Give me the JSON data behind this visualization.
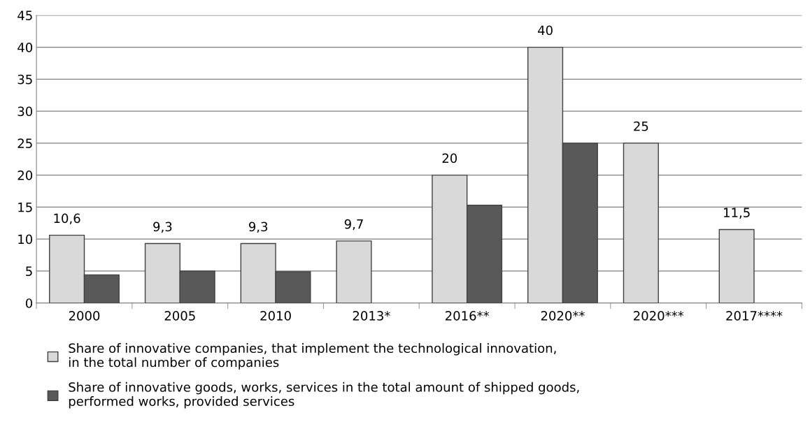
{
  "chart_data": {
    "type": "bar",
    "categories": [
      "2000",
      "2005",
      "2010",
      "2013*",
      "2016**",
      "2020**",
      "2020***",
      "2017****"
    ],
    "series": [
      {
        "name": "Share of innovative companies, that implement the technological innovation,\nin the total number of companies",
        "color": "#d9d9d9",
        "values": [
          10.6,
          9.3,
          9.3,
          9.7,
          20,
          40,
          25,
          11.5
        ],
        "value_labels": [
          "10,6",
          "9,3",
          "9,3",
          "9,7",
          "20",
          "40",
          "25",
          "11,5"
        ]
      },
      {
        "name": "Share of innovative goods, works, services in the total amount of shipped goods,\nperformed works, provided services",
        "color": "#595959",
        "values": [
          4.4,
          5.0,
          4.9,
          null,
          15.3,
          25,
          null,
          null
        ]
      }
    ],
    "ylim": [
      0,
      45
    ],
    "yticks": [
      0,
      5,
      10,
      15,
      20,
      25,
      30,
      35,
      40,
      45
    ],
    "grid": "y",
    "legend": "bottom"
  }
}
